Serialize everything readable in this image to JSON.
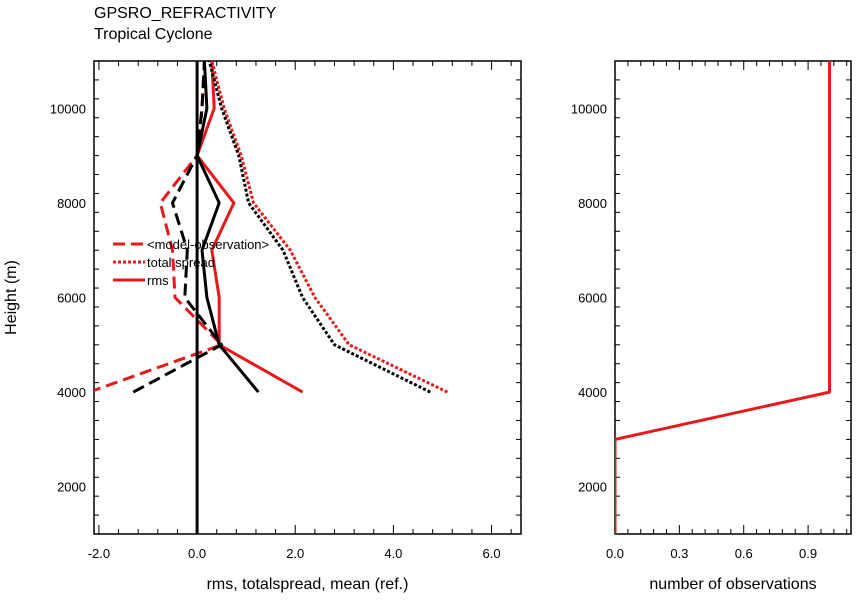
{
  "title": "GPSRO_REFRACTIVITY",
  "subtitle": "Tropical Cyclone",
  "chart_data": [
    {
      "type": "line",
      "xlabel": "rms, totalspread, mean (ref.)",
      "ylabel": "Height (m)",
      "xlim": [
        -2.1,
        6.6
      ],
      "ylim": [
        1000,
        11000
      ],
      "xticks": [
        -2,
        0,
        2,
        4,
        6
      ],
      "xtick_labels": [
        "-2.0",
        "0.0",
        "2.0",
        "4.0",
        "6.0"
      ],
      "yticks": [
        2000,
        4000,
        6000,
        8000,
        10000
      ],
      "ytick_labels": [
        "2000",
        "4000",
        "6000",
        "8000",
        "10000"
      ],
      "legend": {
        "placement": "left-middle",
        "entries": [
          {
            "label": "<model-observation>",
            "style": "dashed"
          },
          {
            "label": "total spread",
            "style": "dotted"
          },
          {
            "label": "rms",
            "style": "solid"
          }
        ]
      },
      "series": [
        {
          "color": "#e8191a",
          "style": "dashed",
          "y": [
            4000,
            5000,
            6000,
            7000,
            8000,
            9000,
            10000,
            11000
          ],
          "x": [
            -2.2,
            0.5,
            -0.45,
            -0.5,
            -0.75,
            0.0,
            0.1,
            0.15
          ]
        },
        {
          "color": "#e8191a",
          "style": "dotted",
          "y": [
            4000,
            5000,
            6000,
            7000,
            8000,
            9000,
            10000,
            11000
          ],
          "x": [
            5.1,
            3.1,
            2.4,
            1.9,
            1.15,
            0.9,
            0.55,
            0.3
          ]
        },
        {
          "color": "#e8191a",
          "style": "solid",
          "y": [
            4000,
            5000,
            6000,
            7000,
            8000,
            9000,
            10000,
            11000
          ],
          "x": [
            2.15,
            0.45,
            0.45,
            0.3,
            0.75,
            0.0,
            0.35,
            0.3
          ]
        },
        {
          "color": "#000000",
          "style": "dashed",
          "y": [
            4000,
            5000,
            6000,
            7000,
            8000,
            9000,
            10000,
            11000
          ],
          "x": [
            -1.3,
            0.5,
            -0.25,
            -0.2,
            -0.5,
            0.0,
            0.1,
            0.15
          ]
        },
        {
          "color": "#000000",
          "style": "dotted",
          "y": [
            4000,
            5000,
            6000,
            7000,
            8000,
            9000,
            10000,
            11000
          ],
          "x": [
            4.75,
            2.8,
            2.15,
            1.75,
            1.05,
            0.85,
            0.5,
            0.25
          ]
        },
        {
          "color": "#000000",
          "style": "solid",
          "y": [
            4000,
            5000,
            6000,
            7000,
            8000,
            9000,
            10000,
            11000
          ],
          "x": [
            1.25,
            0.45,
            0.2,
            0.1,
            0.45,
            0.0,
            0.2,
            0.15
          ]
        },
        {
          "color": "#000000",
          "style": "solid",
          "y": [
            1000,
            11000
          ],
          "x": [
            0.0,
            0.0
          ]
        }
      ]
    },
    {
      "type": "line",
      "xlabel": "number of observations",
      "ylabel": "",
      "xlim": [
        0,
        1.1
      ],
      "ylim": [
        1000,
        11000
      ],
      "xticks": [
        0,
        0.3,
        0.6,
        0.9
      ],
      "xtick_labels": [
        "0.0",
        "0.3",
        "0.6",
        "0.9"
      ],
      "yticks": [
        2000,
        4000,
        6000,
        8000,
        10000
      ],
      "ytick_labels": [
        "2000",
        "4000",
        "6000",
        "8000",
        "10000"
      ],
      "series": [
        {
          "color": "#e8191a",
          "style": "solid",
          "y": [
            1000,
            3000,
            4000,
            11000
          ],
          "x": [
            0.0,
            0.0,
            1.0,
            1.0
          ]
        }
      ]
    }
  ]
}
